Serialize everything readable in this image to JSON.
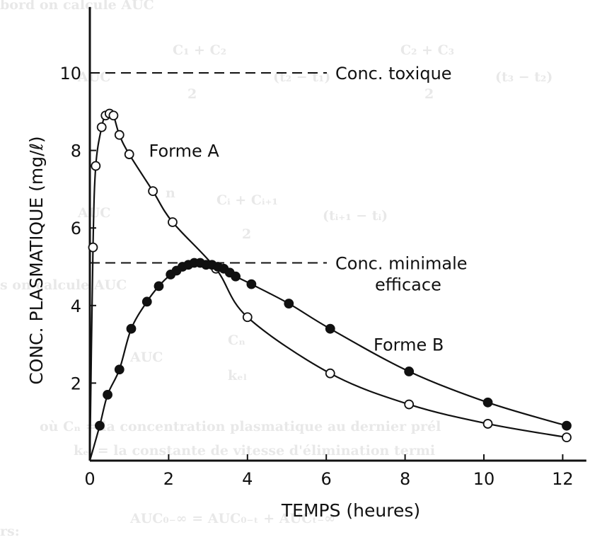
{
  "background_text": [
    "bord on calcule AUC",
    "AUC",
    "C₁ + C₂",
    "2",
    "(t₂ − t₁)",
    "C₂ + C₃",
    "2",
    "(t₃ − t₂)",
    "AUC",
    "n",
    "Cᵢ + Cᵢ₊₁",
    "2",
    "(tᵢ₊₁ − tᵢ)",
    "s on calcule AUC",
    "AUC",
    "Cₙ",
    "kₑₗ",
    "où  Cₙ = la concentration plasmatique au dernier prél",
    "kₑₗ = la constante de vitesse d'élimination termi",
    "rs:",
    "AUC₀₋∞ = AUC₀₋ₜ + AUCₜ₋∞"
  ],
  "chart_data": {
    "type": "line",
    "xlabel": "TEMPS (heures)",
    "ylabel": "CONC. PLASMATIQUE (mg/ℓ)",
    "xlim": [
      0,
      12.6
    ],
    "ylim": [
      0,
      11.7
    ],
    "x_ticks": [
      0,
      2,
      4,
      6,
      8,
      10,
      12
    ],
    "y_ticks": [
      2,
      4,
      6,
      8,
      10
    ],
    "grid": false,
    "reference_lines": [
      {
        "label": "Conc. toxique",
        "y": 10,
        "label_lines": [
          "Conc. toxique"
        ]
      },
      {
        "label": "Conc. minimale efficace",
        "y": 5.1,
        "label_lines": [
          "Conc. minimale",
          "efficace"
        ]
      }
    ],
    "series": [
      {
        "name": "Forme A",
        "marker": "open-circle",
        "x": [
          0,
          0.08,
          0.15,
          0.3,
          0.4,
          0.5,
          0.6,
          0.75,
          1.0,
          1.6,
          2.1,
          3.2,
          4.0,
          6.1,
          8.1,
          10.1,
          12.1
        ],
        "y": [
          0,
          5.5,
          7.6,
          8.6,
          8.9,
          8.95,
          8.9,
          8.4,
          7.9,
          6.95,
          6.15,
          4.95,
          3.7,
          2.25,
          1.45,
          0.95,
          0.6
        ]
      },
      {
        "name": "Forme B",
        "marker": "filled-circle",
        "x": [
          0,
          0.25,
          0.45,
          0.75,
          1.05,
          1.45,
          1.75,
          2.05,
          2.2,
          2.35,
          2.5,
          2.65,
          2.8,
          2.95,
          3.1,
          3.25,
          3.4,
          3.55,
          3.7,
          4.1,
          5.05,
          6.1,
          8.1,
          10.1,
          12.1
        ],
        "y": [
          0,
          0.9,
          1.7,
          2.35,
          3.4,
          4.1,
          4.5,
          4.8,
          4.9,
          5.0,
          5.05,
          5.1,
          5.1,
          5.05,
          5.05,
          5.0,
          4.95,
          4.85,
          4.75,
          4.55,
          4.05,
          3.4,
          2.3,
          1.5,
          0.9
        ]
      }
    ],
    "annotations": [
      {
        "text": "Forme A",
        "x": 1.5,
        "y": 8.0
      },
      {
        "text": "Forme B",
        "x": 7.2,
        "y": 3.0
      }
    ]
  }
}
